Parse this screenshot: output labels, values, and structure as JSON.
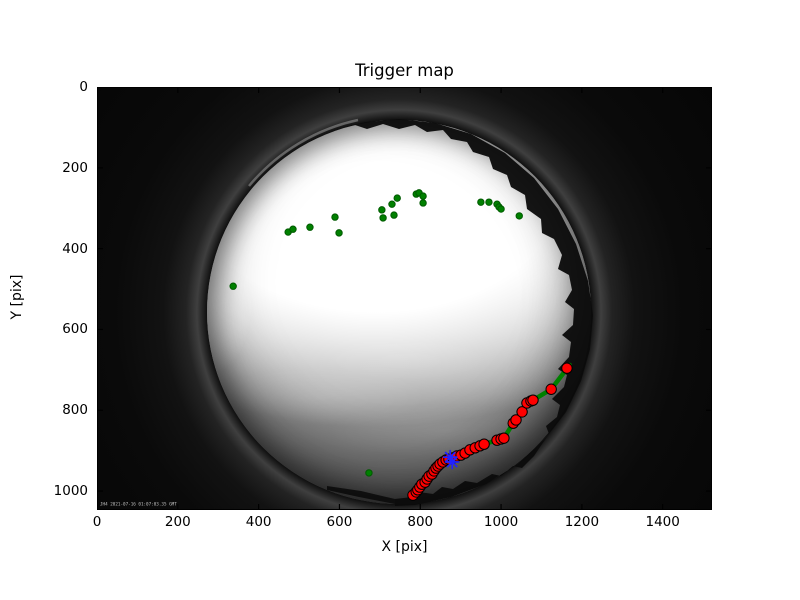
{
  "watermark": "JH4 2021-07-16 01:07:03.35 GMT",
  "colors": {
    "green_points": "#008000",
    "red_track": "#ff0000",
    "red_track_edge": "#000000",
    "blue_marker": "#2222ff",
    "axis": "#000000",
    "figure_background": "#ffffff"
  },
  "chart_data": {
    "type": "scatter",
    "title": "Trigger map",
    "xlabel": "X [pix]",
    "ylabel": "Y [pix]",
    "xlim": [
      0,
      1522
    ],
    "ylim": [
      1047,
      0
    ],
    "y_axis_inverted": true,
    "grid": false,
    "legend": null,
    "x_ticks": [
      0,
      200,
      400,
      600,
      800,
      1000,
      1200,
      1400
    ],
    "y_ticks": [
      0,
      200,
      400,
      600,
      800,
      1000
    ],
    "background_description": "grayscale all-sky fisheye night camera frame",
    "series": [
      {
        "name": "track-line-green",
        "marker": "line",
        "color": "#008000",
        "width": 4.5,
        "points": [
          [
            782,
            1010
          ],
          [
            790,
            1002
          ],
          [
            794,
            997
          ],
          [
            799,
            990
          ],
          [
            804,
            983
          ],
          [
            812,
            978
          ],
          [
            817,
            970
          ],
          [
            822,
            963
          ],
          [
            829,
            958
          ],
          [
            834,
            950
          ],
          [
            839,
            943
          ],
          [
            844,
            938
          ],
          [
            849,
            933
          ],
          [
            856,
            928
          ],
          [
            864,
            923
          ],
          [
            871,
            921
          ],
          [
            881,
            918
          ],
          [
            891,
            913
          ],
          [
            901,
            911
          ],
          [
            911,
            906
          ],
          [
            923,
            898
          ],
          [
            936,
            893
          ],
          [
            948,
            888
          ],
          [
            958,
            884
          ],
          [
            990,
            874
          ],
          [
            1000,
            871
          ],
          [
            1007,
            869
          ],
          [
            1030,
            832
          ],
          [
            1037,
            824
          ],
          [
            1052,
            804
          ],
          [
            1064,
            782
          ],
          [
            1074,
            777
          ],
          [
            1079,
            775
          ],
          [
            1124,
            748
          ],
          [
            1170,
            688
          ]
        ]
      },
      {
        "name": "trigger-track-red",
        "marker": "circle",
        "color": "#ff0000",
        "edge": "#000000",
        "size": 10.4,
        "points": [
          [
            782,
            1010
          ],
          [
            790,
            1002
          ],
          [
            794,
            997
          ],
          [
            799,
            990
          ],
          [
            804,
            983
          ],
          [
            812,
            978
          ],
          [
            817,
            970
          ],
          [
            822,
            963
          ],
          [
            829,
            958
          ],
          [
            834,
            950
          ],
          [
            839,
            943
          ],
          [
            844,
            938
          ],
          [
            849,
            933
          ],
          [
            856,
            928
          ],
          [
            864,
            923
          ],
          [
            871,
            921
          ],
          [
            881,
            918
          ],
          [
            891,
            913
          ],
          [
            901,
            911
          ],
          [
            911,
            906
          ],
          [
            923,
            898
          ],
          [
            936,
            893
          ],
          [
            948,
            888
          ],
          [
            958,
            884
          ],
          [
            990,
            874
          ],
          [
            1000,
            871
          ],
          [
            1007,
            869
          ],
          [
            1030,
            832
          ],
          [
            1037,
            824
          ],
          [
            1052,
            804
          ],
          [
            1064,
            782
          ],
          [
            1074,
            777
          ],
          [
            1079,
            775
          ],
          [
            1124,
            748
          ],
          [
            1163,
            696
          ]
        ]
      },
      {
        "name": "trigger-points-green",
        "marker": "circle",
        "color": "#008000",
        "edge": "#005a00",
        "size": 6.4,
        "points": [
          [
            473,
            359
          ],
          [
            485,
            352
          ],
          [
            527,
            347
          ],
          [
            589,
            322
          ],
          [
            599,
            361
          ],
          [
            705,
            304
          ],
          [
            708,
            324
          ],
          [
            730,
            290
          ],
          [
            735,
            317
          ],
          [
            743,
            275
          ],
          [
            790,
            265
          ],
          [
            797,
            262
          ],
          [
            807,
            270
          ],
          [
            807,
            287
          ],
          [
            950,
            285
          ],
          [
            970,
            285
          ],
          [
            990,
            290
          ],
          [
            995,
            297
          ],
          [
            1000,
            302
          ],
          [
            1045,
            319
          ],
          [
            337,
            493
          ],
          [
            673,
            955
          ]
        ]
      },
      {
        "name": "current-frame-marker-blue",
        "marker": "asterisk",
        "color": "#2222ff",
        "size": 13,
        "points": [
          [
            874,
            916
          ],
          [
            879,
            928
          ]
        ]
      }
    ]
  }
}
